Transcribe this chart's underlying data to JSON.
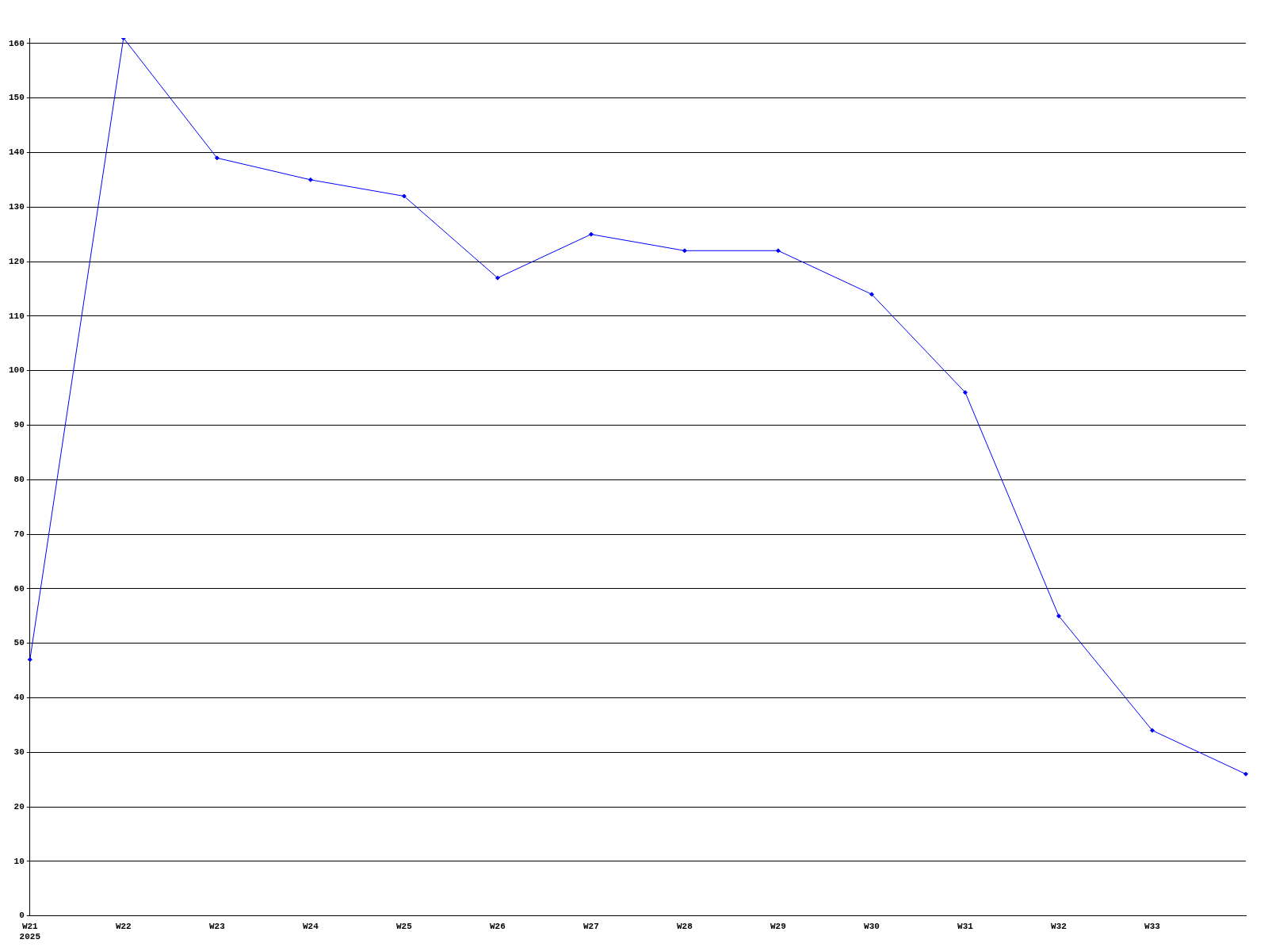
{
  "chart_data": {
    "type": "line",
    "categories": [
      "W21\n2025",
      "W22",
      "W23",
      "W24",
      "W25",
      "W26",
      "W27",
      "W28",
      "W29",
      "W30",
      "W31",
      "W32",
      "W33",
      null
    ],
    "series": [
      {
        "color": "#0000ff",
        "values": [
          47,
          161,
          139,
          135,
          132,
          117,
          125,
          122,
          122,
          114,
          96,
          55,
          34,
          26
        ]
      }
    ],
    "ylim": [
      0,
      161
    ],
    "yticks": [
      0,
      10,
      20,
      30,
      40,
      50,
      60,
      70,
      80,
      90,
      100,
      110,
      120,
      130,
      140,
      150,
      160
    ],
    "grid": "y",
    "legend": false,
    "marker": "diamond",
    "line_style": "solid"
  }
}
